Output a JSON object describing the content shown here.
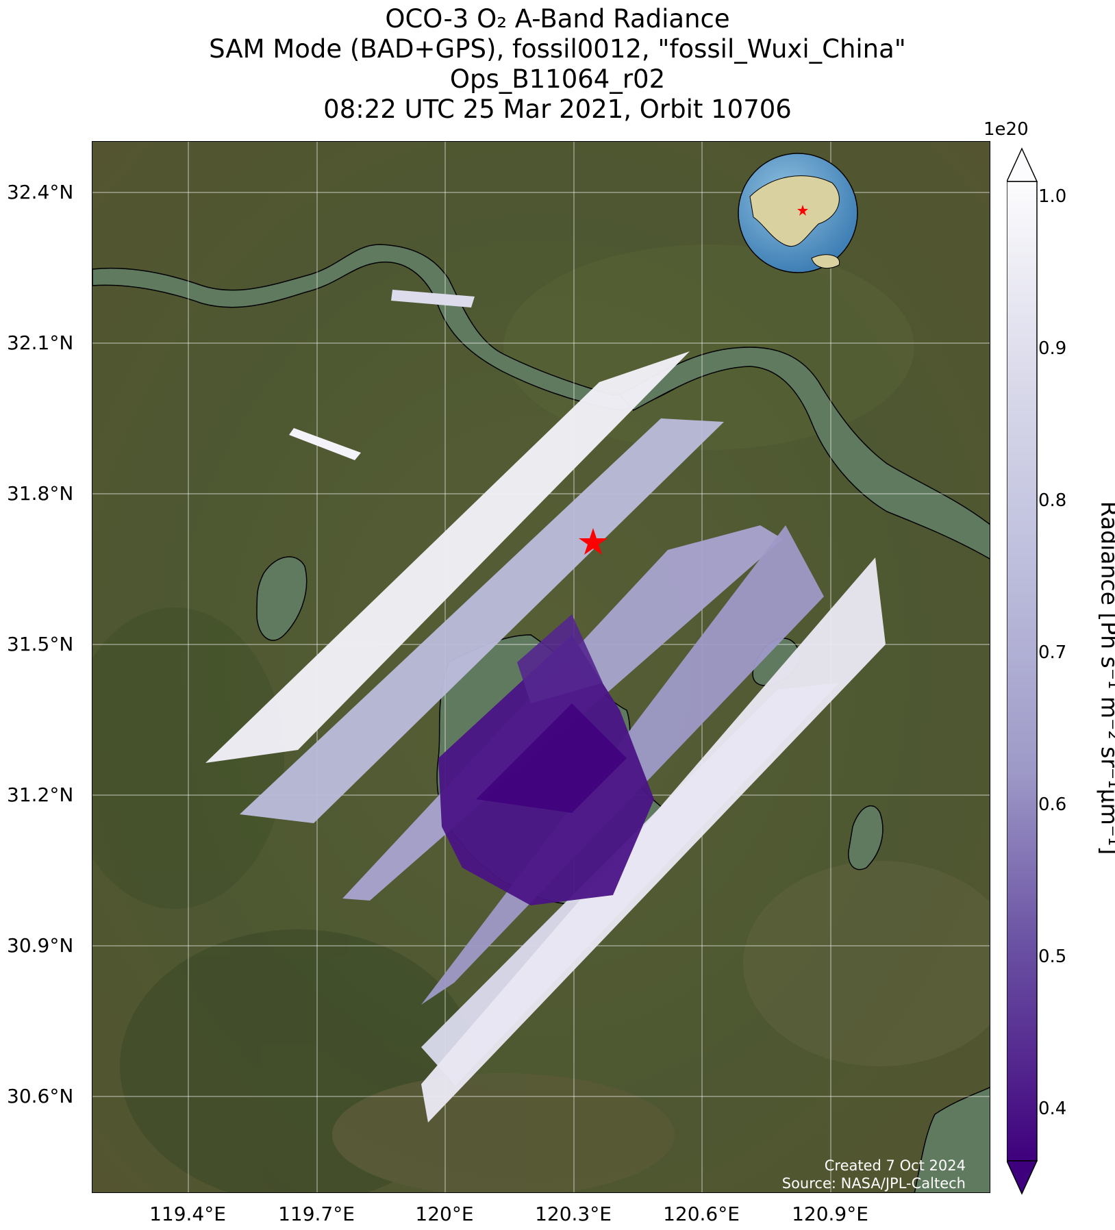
{
  "title": {
    "line1": "OCO-3 O₂ A-Band Radiance",
    "line2": "SAM Mode (BAD+GPS), fossil0012, \"fossil_Wuxi_China\"",
    "line3": "Ops_B11064_r02",
    "line4": "08:22 UTC 25 Mar 2021, Orbit 10706"
  },
  "axes": {
    "lat_ticks": [
      "32.4°N",
      "32.1°N",
      "31.8°N",
      "31.5°N",
      "31.2°N",
      "30.9°N",
      "30.6°N"
    ],
    "lon_ticks": [
      "119.4°E",
      "119.7°E",
      "120°E",
      "120.3°E",
      "120.6°E",
      "120.9°E"
    ],
    "lat_range": [
      30.4,
      32.5
    ],
    "lon_range": [
      119.2,
      121.3
    ]
  },
  "colorbar": {
    "label": "Radiance [Ph s⁻¹ m⁻² sr⁻¹μm⁻¹]",
    "exponent": "1e20",
    "ticks": [
      "1.0",
      "0.9",
      "0.8",
      "0.7",
      "0.6",
      "0.5",
      "0.4"
    ],
    "range": [
      0.38,
      1.0
    ],
    "colormap": "Purples_r",
    "extend": "both"
  },
  "target": {
    "lat": 31.57,
    "lon": 120.29,
    "marker": "red-star"
  },
  "credit": {
    "created": "Created 7 Oct 2024",
    "source": "Source: NASA/JPL-Caltech"
  },
  "colors": {
    "land": "#4f5a33",
    "water": "#5f7a5e",
    "marker": "#ff0000",
    "swath_dark": "#3f007d",
    "swath_light": "#fcfbfd"
  }
}
